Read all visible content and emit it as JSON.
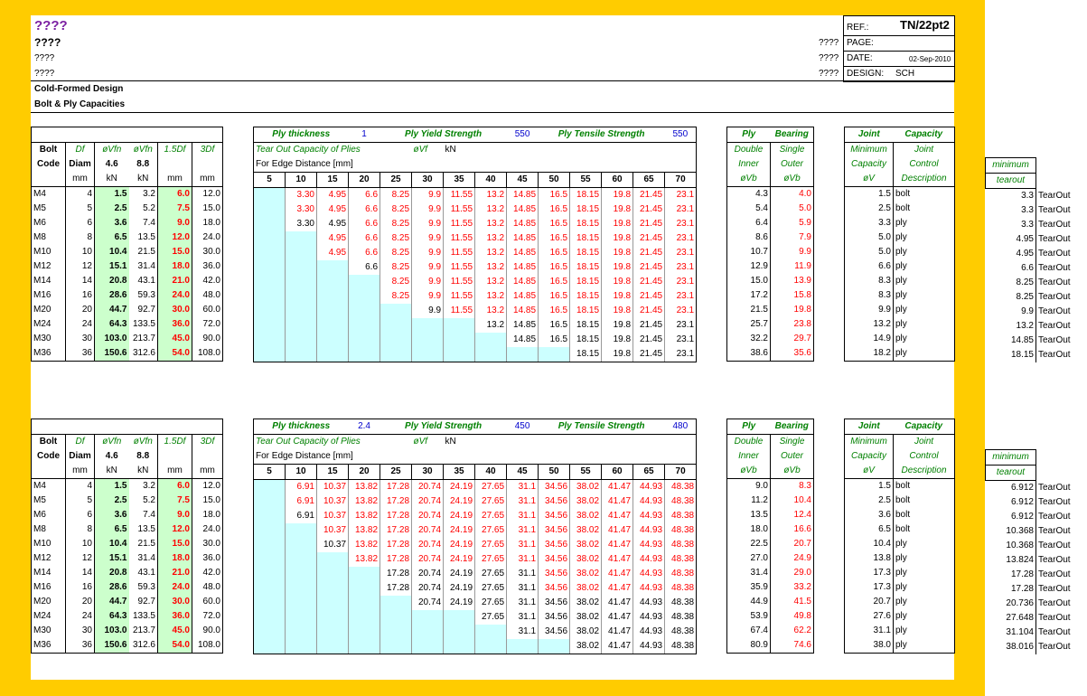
{
  "header": {
    "title1": "????",
    "title2": "????",
    "title3": "????",
    "title4": "????",
    "ref_label": "REF.:",
    "ref_value": "TN/22pt2",
    "page_label": "PAGE:",
    "date_label": "DATE:",
    "date_value": "02-Sep-2010",
    "design_label": "DESIGN:",
    "design_value": "SCH",
    "side_q": [
      "????",
      "????",
      "????"
    ],
    "sub1": "Cold-Formed Design",
    "sub2": "Bolt & Ply Capacities"
  },
  "labels": {
    "bolt": "Bolt",
    "code": "Code",
    "df": "Df",
    "diam": "Diam",
    "mm": "mm",
    "kn": "kN",
    "ovfn": "øVfn",
    "bdf": "1.5Df",
    "tdf": "3Df",
    "g46": "4.6",
    "g88": "8.8",
    "ply_thickness": "Ply thickness",
    "ply_yield": "Ply Yield Strength",
    "ply_tensile": "Ply Tensile Strength",
    "tearout_title": "Tear Out Capacity of Plies",
    "ovf": "øVf",
    "edge": "For Edge Distance [mm]",
    "ply": "Ply",
    "bearing": "Bearing",
    "double": "Double",
    "single": "Single",
    "inner": "Inner",
    "outer": "Outer",
    "ovb": "øVb",
    "joint": "Joint",
    "capacity": "Capacity",
    "minimum_cap": "Minimum",
    "joint2": "Joint",
    "capacity2": "Capacity",
    "control": "Control",
    "ov": "øV",
    "description": "Description",
    "minimum": "minimum",
    "tearout": "tearout"
  },
  "edges": [
    "5",
    "10",
    "15",
    "20",
    "25",
    "30",
    "35",
    "40",
    "45",
    "50",
    "55",
    "60",
    "65",
    "70"
  ],
  "blocks": [
    {
      "ply_thickness": "1",
      "yield": "550",
      "tensile": "550",
      "rows": [
        {
          "code": "M4",
          "df": "4",
          "v46": "1.5",
          "v88": "3.2",
          "d15": "6.0",
          "d3": "12.0",
          "start": 1,
          "tear": [
            "3.30",
            "4.95",
            "6.6",
            "8.25",
            "9.9",
            "11.55",
            "13.2",
            "14.85",
            "16.5",
            "18.15",
            "19.8",
            "21.45",
            "23.1"
          ],
          "redfrom": 1,
          "dbl": "4.3",
          "sgl": "4.0",
          "minv": "1.5",
          "ctrl": "bolt",
          "mint": "3.3",
          "tt": "TearOut"
        },
        {
          "code": "M5",
          "df": "5",
          "v46": "2.5",
          "v88": "5.2",
          "d15": "7.5",
          "d3": "15.0",
          "start": 1,
          "tear": [
            "3.30",
            "4.95",
            "6.6",
            "8.25",
            "9.9",
            "11.55",
            "13.2",
            "14.85",
            "16.5",
            "18.15",
            "19.8",
            "21.45",
            "23.1"
          ],
          "redfrom": 1,
          "dbl": "5.4",
          "sgl": "5.0",
          "minv": "2.5",
          "ctrl": "bolt",
          "mint": "3.3",
          "tt": "TearOut"
        },
        {
          "code": "M6",
          "df": "6",
          "v46": "3.6",
          "v88": "7.4",
          "d15": "9.0",
          "d3": "18.0",
          "start": 1,
          "tear": [
            "3.30",
            "4.95",
            "6.6",
            "8.25",
            "9.9",
            "11.55",
            "13.2",
            "14.85",
            "16.5",
            "18.15",
            "19.8",
            "21.45",
            "23.1"
          ],
          "redfrom": 3,
          "dbl": "6.4",
          "sgl": "5.9",
          "minv": "3.3",
          "ctrl": "ply",
          "mint": "3.3",
          "tt": "TearOut"
        },
        {
          "code": "M8",
          "df": "8",
          "v46": "6.5",
          "v88": "13.5",
          "d15": "12.0",
          "d3": "24.0",
          "start": 2,
          "tear": [
            "4.95",
            "6.6",
            "8.25",
            "9.9",
            "11.55",
            "13.2",
            "14.85",
            "16.5",
            "18.15",
            "19.8",
            "21.45",
            "23.1"
          ],
          "redfrom": 2,
          "dbl": "8.6",
          "sgl": "7.9",
          "minv": "5.0",
          "ctrl": "ply",
          "mint": "4.95",
          "tt": "TearOut"
        },
        {
          "code": "M10",
          "df": "10",
          "v46": "10.4",
          "v88": "21.5",
          "d15": "15.0",
          "d3": "30.0",
          "start": 2,
          "tear": [
            "4.95",
            "6.6",
            "8.25",
            "9.9",
            "11.55",
            "13.2",
            "14.85",
            "16.5",
            "18.15",
            "19.8",
            "21.45",
            "23.1"
          ],
          "redfrom": 2,
          "dbl": "10.7",
          "sgl": "9.9",
          "minv": "5.0",
          "ctrl": "ply",
          "mint": "4.95",
          "tt": "TearOut"
        },
        {
          "code": "M12",
          "df": "12",
          "v46": "15.1",
          "v88": "31.4",
          "d15": "18.0",
          "d3": "36.0",
          "start": 3,
          "tear": [
            "6.6",
            "8.25",
            "9.9",
            "11.55",
            "13.2",
            "14.85",
            "16.5",
            "18.15",
            "19.8",
            "21.45",
            "23.1"
          ],
          "redfrom": 4,
          "dbl": "12.9",
          "sgl": "11.9",
          "minv": "6.6",
          "ctrl": "ply",
          "mint": "6.6",
          "tt": "TearOut"
        },
        {
          "code": "M14",
          "df": "14",
          "v46": "20.8",
          "v88": "43.1",
          "d15": "21.0",
          "d3": "42.0",
          "start": 4,
          "tear": [
            "8.25",
            "9.9",
            "11.55",
            "13.2",
            "14.85",
            "16.5",
            "18.15",
            "19.8",
            "21.45",
            "23.1"
          ],
          "redfrom": 4,
          "dbl": "15.0",
          "sgl": "13.9",
          "minv": "8.3",
          "ctrl": "ply",
          "mint": "8.25",
          "tt": "TearOut"
        },
        {
          "code": "M16",
          "df": "16",
          "v46": "28.6",
          "v88": "59.3",
          "d15": "24.0",
          "d3": "48.0",
          "start": 4,
          "tear": [
            "8.25",
            "9.9",
            "11.55",
            "13.2",
            "14.85",
            "16.5",
            "18.15",
            "19.8",
            "21.45",
            "23.1"
          ],
          "redfrom": 4,
          "dbl": "17.2",
          "sgl": "15.8",
          "minv": "8.3",
          "ctrl": "ply",
          "mint": "8.25",
          "tt": "TearOut"
        },
        {
          "code": "M20",
          "df": "20",
          "v46": "44.7",
          "v88": "92.7",
          "d15": "30.0",
          "d3": "60.0",
          "start": 5,
          "tear": [
            "9.9",
            "11.55",
            "13.2",
            "14.85",
            "16.5",
            "18.15",
            "19.8",
            "21.45",
            "23.1"
          ],
          "redfrom": 6,
          "dbl": "21.5",
          "sgl": "19.8",
          "minv": "9.9",
          "ctrl": "ply",
          "mint": "9.9",
          "tt": "TearOut"
        },
        {
          "code": "M24",
          "df": "24",
          "v46": "64.3",
          "v88": "133.5",
          "d15": "36.0",
          "d3": "72.0",
          "start": 7,
          "tear": [
            "13.2",
            "14.85",
            "16.5",
            "18.15",
            "19.8",
            "21.45",
            "23.1"
          ],
          "redfrom": 99,
          "dbl": "25.7",
          "sgl": "23.8",
          "minv": "13.2",
          "ctrl": "ply",
          "mint": "13.2",
          "tt": "TearOut"
        },
        {
          "code": "M30",
          "df": "30",
          "v46": "103.0",
          "v88": "213.7",
          "d15": "45.0",
          "d3": "90.0",
          "start": 8,
          "tear": [
            "14.85",
            "16.5",
            "18.15",
            "19.8",
            "21.45",
            "23.1"
          ],
          "redfrom": 99,
          "dbl": "32.2",
          "sgl": "29.7",
          "minv": "14.9",
          "ctrl": "ply",
          "mint": "14.85",
          "tt": "TearOut"
        },
        {
          "code": "M36",
          "df": "36",
          "v46": "150.6",
          "v88": "312.6",
          "d15": "54.0",
          "d3": "108.0",
          "start": 10,
          "tear": [
            "18.15",
            "19.8",
            "21.45",
            "23.1"
          ],
          "redfrom": 99,
          "dbl": "38.6",
          "sgl": "35.6",
          "minv": "18.2",
          "ctrl": "ply",
          "mint": "18.15",
          "tt": "TearOut"
        }
      ]
    },
    {
      "ply_thickness": "2.4",
      "yield": "450",
      "tensile": "480",
      "rows": [
        {
          "code": "M4",
          "df": "4",
          "v46": "1.5",
          "v88": "3.2",
          "d15": "6.0",
          "d3": "12.0",
          "start": 1,
          "tear": [
            "6.91",
            "10.37",
            "13.82",
            "17.28",
            "20.74",
            "24.19",
            "27.65",
            "31.1",
            "34.56",
            "38.02",
            "41.47",
            "44.93",
            "48.38"
          ],
          "redfrom": 1,
          "dbl": "9.0",
          "sgl": "8.3",
          "minv": "1.5",
          "ctrl": "bolt",
          "mint": "6.912",
          "tt": "TearOut"
        },
        {
          "code": "M5",
          "df": "5",
          "v46": "2.5",
          "v88": "5.2",
          "d15": "7.5",
          "d3": "15.0",
          "start": 1,
          "tear": [
            "6.91",
            "10.37",
            "13.82",
            "17.28",
            "20.74",
            "24.19",
            "27.65",
            "31.1",
            "34.56",
            "38.02",
            "41.47",
            "44.93",
            "48.38"
          ],
          "redfrom": 1,
          "dbl": "11.2",
          "sgl": "10.4",
          "minv": "2.5",
          "ctrl": "bolt",
          "mint": "6.912",
          "tt": "TearOut"
        },
        {
          "code": "M6",
          "df": "6",
          "v46": "3.6",
          "v88": "7.4",
          "d15": "9.0",
          "d3": "18.0",
          "start": 1,
          "tear": [
            "6.91",
            "10.37",
            "13.82",
            "17.28",
            "20.74",
            "24.19",
            "27.65",
            "31.1",
            "34.56",
            "38.02",
            "41.47",
            "44.93",
            "48.38"
          ],
          "redfrom": 2,
          "dbl": "13.5",
          "sgl": "12.4",
          "minv": "3.6",
          "ctrl": "bolt",
          "mint": "6.912",
          "tt": "TearOut"
        },
        {
          "code": "M8",
          "df": "8",
          "v46": "6.5",
          "v88": "13.5",
          "d15": "12.0",
          "d3": "24.0",
          "start": 2,
          "tear": [
            "10.37",
            "13.82",
            "17.28",
            "20.74",
            "24.19",
            "27.65",
            "31.1",
            "34.56",
            "38.02",
            "41.47",
            "44.93",
            "48.38"
          ],
          "redfrom": 2,
          "dbl": "18.0",
          "sgl": "16.6",
          "minv": "6.5",
          "ctrl": "bolt",
          "mint": "10.368",
          "tt": "TearOut"
        },
        {
          "code": "M10",
          "df": "10",
          "v46": "10.4",
          "v88": "21.5",
          "d15": "15.0",
          "d3": "30.0",
          "start": 2,
          "tear": [
            "10.37",
            "13.82",
            "17.28",
            "20.74",
            "24.19",
            "27.65",
            "31.1",
            "34.56",
            "38.02",
            "41.47",
            "44.93",
            "48.38"
          ],
          "redfrom": 3,
          "dbl": "22.5",
          "sgl": "20.7",
          "minv": "10.4",
          "ctrl": "ply",
          "mint": "10.368",
          "tt": "TearOut"
        },
        {
          "code": "M12",
          "df": "12",
          "v46": "15.1",
          "v88": "31.4",
          "d15": "18.0",
          "d3": "36.0",
          "start": 3,
          "tear": [
            "13.82",
            "17.28",
            "20.74",
            "24.19",
            "27.65",
            "31.1",
            "34.56",
            "38.02",
            "41.47",
            "44.93",
            "48.38"
          ],
          "redfrom": 3,
          "dbl": "27.0",
          "sgl": "24.9",
          "minv": "13.8",
          "ctrl": "ply",
          "mint": "13.824",
          "tt": "TearOut"
        },
        {
          "code": "M14",
          "df": "14",
          "v46": "20.8",
          "v88": "43.1",
          "d15": "21.0",
          "d3": "42.0",
          "start": 4,
          "tear": [
            "17.28",
            "20.74",
            "24.19",
            "27.65",
            "31.1",
            "34.56",
            "38.02",
            "41.47",
            "44.93",
            "48.38"
          ],
          "redfrom": 9,
          "dbl": "31.4",
          "sgl": "29.0",
          "minv": "17.3",
          "ctrl": "ply",
          "mint": "17.28",
          "tt": "TearOut"
        },
        {
          "code": "M16",
          "df": "16",
          "v46": "28.6",
          "v88": "59.3",
          "d15": "24.0",
          "d3": "48.0",
          "start": 4,
          "tear": [
            "17.28",
            "20.74",
            "24.19",
            "27.65",
            "31.1",
            "34.56",
            "38.02",
            "41.47",
            "44.93",
            "48.38"
          ],
          "redfrom": 9,
          "dbl": "35.9",
          "sgl": "33.2",
          "minv": "17.3",
          "ctrl": "ply",
          "mint": "17.28",
          "tt": "TearOut"
        },
        {
          "code": "M20",
          "df": "20",
          "v46": "44.7",
          "v88": "92.7",
          "d15": "30.0",
          "d3": "60.0",
          "start": 5,
          "tear": [
            "20.74",
            "24.19",
            "27.65",
            "31.1",
            "34.56",
            "38.02",
            "41.47",
            "44.93",
            "48.38"
          ],
          "redfrom": 99,
          "dbl": "44.9",
          "sgl": "41.5",
          "minv": "20.7",
          "ctrl": "ply",
          "mint": "20.736",
          "tt": "TearOut"
        },
        {
          "code": "M24",
          "df": "24",
          "v46": "64.3",
          "v88": "133.5",
          "d15": "36.0",
          "d3": "72.0",
          "start": 7,
          "tear": [
            "27.65",
            "31.1",
            "34.56",
            "38.02",
            "41.47",
            "44.93",
            "48.38"
          ],
          "redfrom": 99,
          "dbl": "53.9",
          "sgl": "49.8",
          "minv": "27.6",
          "ctrl": "ply",
          "mint": "27.648",
          "tt": "TearOut"
        },
        {
          "code": "M30",
          "df": "30",
          "v46": "103.0",
          "v88": "213.7",
          "d15": "45.0",
          "d3": "90.0",
          "start": 8,
          "tear": [
            "31.1",
            "34.56",
            "38.02",
            "41.47",
            "44.93",
            "48.38"
          ],
          "redfrom": 99,
          "dbl": "67.4",
          "sgl": "62.2",
          "minv": "31.1",
          "ctrl": "ply",
          "mint": "31.104",
          "tt": "TearOut"
        },
        {
          "code": "M36",
          "df": "36",
          "v46": "150.6",
          "v88": "312.6",
          "d15": "54.0",
          "d3": "108.0",
          "start": 10,
          "tear": [
            "38.02",
            "41.47",
            "44.93",
            "48.38"
          ],
          "redfrom": 99,
          "dbl": "80.9",
          "sgl": "74.6",
          "minv": "38.0",
          "ctrl": "ply",
          "mint": "38.016",
          "tt": "TearOut"
        }
      ]
    }
  ]
}
